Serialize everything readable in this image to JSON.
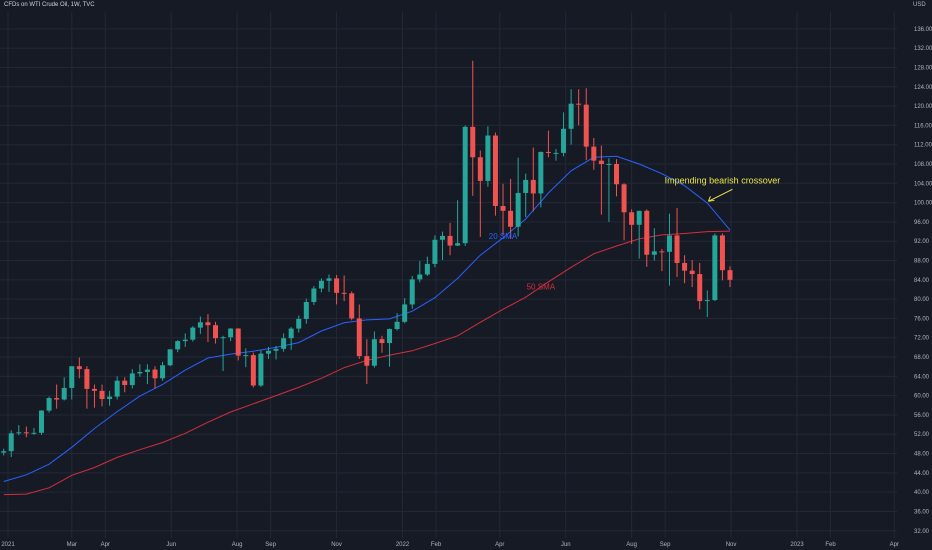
{
  "header": {
    "title": "CFDs on WTI Crude Oil, 1W, TVC",
    "currency": "USD"
  },
  "colors": {
    "background": "#161a25",
    "grid": "#232837",
    "bull": "#26a69a",
    "bear": "#ef5350",
    "sma20": "#2962ff",
    "sma50": "#d32f3c",
    "annotation": "#e8e84a",
    "axis_text": "#b2b5be"
  },
  "chart_data": {
    "type": "candlestick",
    "ylim": [
      30.5,
      139.5
    ],
    "y_ticks": [
      32,
      36,
      40,
      44,
      48,
      52,
      56,
      60,
      64,
      68,
      72,
      76,
      80,
      84,
      88,
      92,
      96,
      100,
      104,
      108,
      112,
      116,
      120,
      124,
      128,
      132,
      136
    ],
    "x_labels": [
      {
        "label": "2021",
        "date": "2021-01-01"
      },
      {
        "label": "Mar",
        "date": "2021-03-01"
      },
      {
        "label": "Apr",
        "date": "2021-04-01"
      },
      {
        "label": "Jun",
        "date": "2021-06-01"
      },
      {
        "label": "Aug",
        "date": "2021-08-01"
      },
      {
        "label": "Sep",
        "date": "2021-09-01"
      },
      {
        "label": "Nov",
        "date": "2021-11-01"
      },
      {
        "label": "2022",
        "date": "2022-01-01"
      },
      {
        "label": "Feb",
        "date": "2022-02-01"
      },
      {
        "label": "Apr",
        "date": "2022-04-01"
      },
      {
        "label": "Jun",
        "date": "2022-06-01"
      },
      {
        "label": "Aug",
        "date": "2022-08-01"
      },
      {
        "label": "Sep",
        "date": "2022-09-01"
      },
      {
        "label": "Nov",
        "date": "2022-11-01"
      },
      {
        "label": "2023",
        "date": "2023-01-01"
      },
      {
        "label": "Feb",
        "date": "2023-02-01"
      },
      {
        "label": "Apr",
        "date": "2023-04-01"
      }
    ],
    "candles": [
      {
        "date": "2020-12-28",
        "o": 48.2,
        "h": 49.0,
        "l": 47.6,
        "c": 48.5
      },
      {
        "date": "2021-01-04",
        "o": 48.5,
        "h": 52.8,
        "l": 47.3,
        "c": 52.2
      },
      {
        "date": "2021-01-11",
        "o": 52.2,
        "h": 53.9,
        "l": 51.8,
        "c": 52.4
      },
      {
        "date": "2021-01-18",
        "o": 52.4,
        "h": 53.6,
        "l": 51.4,
        "c": 52.3
      },
      {
        "date": "2021-01-25",
        "o": 52.3,
        "h": 53.3,
        "l": 51.9,
        "c": 52.3
      },
      {
        "date": "2021-02-01",
        "o": 52.3,
        "h": 57.0,
        "l": 51.9,
        "c": 56.9
      },
      {
        "date": "2021-02-08",
        "o": 56.9,
        "h": 59.8,
        "l": 56.5,
        "c": 59.5
      },
      {
        "date": "2021-02-15",
        "o": 59.5,
        "h": 62.3,
        "l": 57.3,
        "c": 59.2
      },
      {
        "date": "2021-02-22",
        "o": 59.2,
        "h": 63.8,
        "l": 59.0,
        "c": 61.6
      },
      {
        "date": "2021-03-01",
        "o": 61.6,
        "h": 66.1,
        "l": 59.2,
        "c": 66.1
      },
      {
        "date": "2021-03-08",
        "o": 66.1,
        "h": 67.9,
        "l": 63.6,
        "c": 65.5
      },
      {
        "date": "2021-03-15",
        "o": 65.5,
        "h": 66.1,
        "l": 57.3,
        "c": 61.4
      },
      {
        "date": "2021-03-22",
        "o": 61.4,
        "h": 62.3,
        "l": 57.5,
        "c": 61.0
      },
      {
        "date": "2021-03-29",
        "o": 61.0,
        "h": 62.3,
        "l": 57.8,
        "c": 59.3
      },
      {
        "date": "2021-04-05",
        "o": 59.3,
        "h": 61.0,
        "l": 57.9,
        "c": 59.8
      },
      {
        "date": "2021-04-12",
        "o": 59.8,
        "h": 64.0,
        "l": 59.2,
        "c": 63.1
      },
      {
        "date": "2021-04-19",
        "o": 63.1,
        "h": 63.8,
        "l": 60.7,
        "c": 62.2
      },
      {
        "date": "2021-04-26",
        "o": 62.2,
        "h": 65.5,
        "l": 61.5,
        "c": 64.6
      },
      {
        "date": "2021-05-03",
        "o": 64.6,
        "h": 66.5,
        "l": 63.9,
        "c": 64.9
      },
      {
        "date": "2021-05-10",
        "o": 64.9,
        "h": 66.5,
        "l": 62.4,
        "c": 65.4
      },
      {
        "date": "2021-05-17",
        "o": 65.4,
        "h": 66.1,
        "l": 61.5,
        "c": 63.6
      },
      {
        "date": "2021-05-24",
        "o": 63.6,
        "h": 67.0,
        "l": 63.1,
        "c": 66.3
      },
      {
        "date": "2021-05-31",
        "o": 66.3,
        "h": 69.6,
        "l": 66.1,
        "c": 69.6
      },
      {
        "date": "2021-06-07",
        "o": 69.6,
        "h": 71.5,
        "l": 69.0,
        "c": 71.3
      },
      {
        "date": "2021-06-14",
        "o": 71.3,
        "h": 72.9,
        "l": 70.1,
        "c": 71.6
      },
      {
        "date": "2021-06-21",
        "o": 71.6,
        "h": 74.4,
        "l": 71.2,
        "c": 74.1
      },
      {
        "date": "2021-06-28",
        "o": 74.1,
        "h": 76.4,
        "l": 72.8,
        "c": 75.2
      },
      {
        "date": "2021-07-05",
        "o": 75.2,
        "h": 76.9,
        "l": 71.1,
        "c": 74.6
      },
      {
        "date": "2021-07-12",
        "o": 74.6,
        "h": 75.3,
        "l": 70.8,
        "c": 71.9
      },
      {
        "date": "2021-07-19",
        "o": 71.9,
        "h": 72.4,
        "l": 65.1,
        "c": 72.1
      },
      {
        "date": "2021-07-26",
        "o": 72.1,
        "h": 74.0,
        "l": 71.3,
        "c": 73.9
      },
      {
        "date": "2021-08-02",
        "o": 73.9,
        "h": 74.0,
        "l": 67.3,
        "c": 68.3
      },
      {
        "date": "2021-08-09",
        "o": 68.3,
        "h": 69.8,
        "l": 65.9,
        "c": 68.4
      },
      {
        "date": "2021-08-16",
        "o": 68.4,
        "h": 68.9,
        "l": 61.7,
        "c": 62.1
      },
      {
        "date": "2021-08-23",
        "o": 62.1,
        "h": 69.4,
        "l": 61.8,
        "c": 68.7
      },
      {
        "date": "2021-08-30",
        "o": 68.7,
        "h": 70.1,
        "l": 67.6,
        "c": 69.3
      },
      {
        "date": "2021-09-06",
        "o": 69.3,
        "h": 70.3,
        "l": 67.5,
        "c": 69.7
      },
      {
        "date": "2021-09-13",
        "o": 69.7,
        "h": 72.9,
        "l": 69.1,
        "c": 71.9
      },
      {
        "date": "2021-09-20",
        "o": 71.9,
        "h": 74.2,
        "l": 69.5,
        "c": 73.9
      },
      {
        "date": "2021-09-27",
        "o": 73.9,
        "h": 76.6,
        "l": 73.1,
        "c": 75.9
      },
      {
        "date": "2021-10-04",
        "o": 75.9,
        "h": 80.1,
        "l": 74.9,
        "c": 79.4
      },
      {
        "date": "2021-10-11",
        "o": 79.4,
        "h": 82.7,
        "l": 78.8,
        "c": 82.2
      },
      {
        "date": "2021-10-18",
        "o": 82.2,
        "h": 84.3,
        "l": 81.4,
        "c": 83.8
      },
      {
        "date": "2021-10-25",
        "o": 83.8,
        "h": 85.1,
        "l": 81.5,
        "c": 84.3
      },
      {
        "date": "2021-11-01",
        "o": 84.3,
        "h": 85.0,
        "l": 78.9,
        "c": 81.3
      },
      {
        "date": "2021-11-08",
        "o": 81.3,
        "h": 84.9,
        "l": 79.6,
        "c": 81.2
      },
      {
        "date": "2021-11-15",
        "o": 81.2,
        "h": 81.6,
        "l": 75.6,
        "c": 76.0
      },
      {
        "date": "2021-11-22",
        "o": 76.0,
        "h": 78.9,
        "l": 67.6,
        "c": 68.2
      },
      {
        "date": "2021-11-29",
        "o": 68.2,
        "h": 71.7,
        "l": 62.4,
        "c": 66.2
      },
      {
        "date": "2021-12-06",
        "o": 66.2,
        "h": 73.3,
        "l": 65.8,
        "c": 71.7
      },
      {
        "date": "2021-12-13",
        "o": 71.7,
        "h": 72.4,
        "l": 68.9,
        "c": 70.9
      },
      {
        "date": "2021-12-20",
        "o": 70.9,
        "h": 73.9,
        "l": 66.0,
        "c": 73.8
      },
      {
        "date": "2021-12-27",
        "o": 73.8,
        "h": 77.1,
        "l": 73.5,
        "c": 75.3
      },
      {
        "date": "2022-01-03",
        "o": 75.3,
        "h": 80.2,
        "l": 75.0,
        "c": 78.9
      },
      {
        "date": "2022-01-10",
        "o": 78.9,
        "h": 84.8,
        "l": 78.0,
        "c": 84.1
      },
      {
        "date": "2022-01-17",
        "o": 84.1,
        "h": 87.9,
        "l": 83.5,
        "c": 85.1
      },
      {
        "date": "2022-01-24",
        "o": 85.1,
        "h": 88.8,
        "l": 84.8,
        "c": 87.3
      },
      {
        "date": "2022-01-31",
        "o": 87.3,
        "h": 93.2,
        "l": 86.6,
        "c": 92.3
      },
      {
        "date": "2022-02-07",
        "o": 92.3,
        "h": 94.0,
        "l": 88.1,
        "c": 93.1
      },
      {
        "date": "2022-02-14",
        "o": 93.1,
        "h": 95.8,
        "l": 89.1,
        "c": 91.1
      },
      {
        "date": "2022-02-21",
        "o": 91.1,
        "h": 100.5,
        "l": 91.0,
        "c": 91.6
      },
      {
        "date": "2022-02-28",
        "o": 91.6,
        "h": 116.0,
        "l": 91.0,
        "c": 115.7
      },
      {
        "date": "2022-03-07",
        "o": 115.7,
        "h": 129.4,
        "l": 101.4,
        "c": 109.4
      },
      {
        "date": "2022-03-14",
        "o": 109.4,
        "h": 110.8,
        "l": 92.9,
        "c": 104.5
      },
      {
        "date": "2022-03-21",
        "o": 104.5,
        "h": 115.8,
        "l": 103.3,
        "c": 113.9
      },
      {
        "date": "2022-03-28",
        "o": 113.9,
        "h": 114.5,
        "l": 97.3,
        "c": 99.3
      },
      {
        "date": "2022-04-04",
        "o": 99.3,
        "h": 103.9,
        "l": 93.3,
        "c": 98.3
      },
      {
        "date": "2022-04-11",
        "o": 98.3,
        "h": 104.9,
        "l": 92.5,
        "c": 95.0
      },
      {
        "date": "2022-04-18",
        "o": 95.0,
        "h": 109.3,
        "l": 93.0,
        "c": 102.0
      },
      {
        "date": "2022-04-25",
        "o": 102.0,
        "h": 106.0,
        "l": 97.0,
        "c": 104.7
      },
      {
        "date": "2022-05-02",
        "o": 104.7,
        "h": 111.4,
        "l": 98.2,
        "c": 101.9
      },
      {
        "date": "2022-05-09",
        "o": 101.9,
        "h": 110.6,
        "l": 99.0,
        "c": 110.5
      },
      {
        "date": "2022-05-16",
        "o": 110.5,
        "h": 114.9,
        "l": 109.4,
        "c": 110.3
      },
      {
        "date": "2022-05-23",
        "o": 110.3,
        "h": 111.1,
        "l": 108.7,
        "c": 110.3
      },
      {
        "date": "2022-05-30",
        "o": 110.3,
        "h": 118.7,
        "l": 109.6,
        "c": 115.3
      },
      {
        "date": "2022-06-06",
        "o": 115.3,
        "h": 123.5,
        "l": 112.0,
        "c": 120.5
      },
      {
        "date": "2022-06-13",
        "o": 120.5,
        "h": 123.5,
        "l": 116.0,
        "c": 120.3
      },
      {
        "date": "2022-06-20",
        "o": 120.3,
        "h": 123.7,
        "l": 108.8,
        "c": 111.6
      },
      {
        "date": "2022-06-27",
        "o": 111.6,
        "h": 113.4,
        "l": 106.8,
        "c": 108.7
      },
      {
        "date": "2022-07-04",
        "o": 108.7,
        "h": 111.8,
        "l": 97.5,
        "c": 108.0
      },
      {
        "date": "2022-07-11",
        "o": 108.0,
        "h": 109.2,
        "l": 96.0,
        "c": 108.0
      },
      {
        "date": "2022-07-18",
        "o": 108.0,
        "h": 109.0,
        "l": 101.3,
        "c": 103.8
      },
      {
        "date": "2022-07-25",
        "o": 103.8,
        "h": 104.0,
        "l": 92.2,
        "c": 98.0
      },
      {
        "date": "2022-08-01",
        "o": 98.0,
        "h": 98.6,
        "l": 91.4,
        "c": 95.4
      },
      {
        "date": "2022-08-08",
        "o": 95.4,
        "h": 98.3,
        "l": 88.4,
        "c": 98.3
      },
      {
        "date": "2022-08-15",
        "o": 98.3,
        "h": 98.6,
        "l": 86.7,
        "c": 89.2
      },
      {
        "date": "2022-08-22",
        "o": 89.2,
        "h": 94.7,
        "l": 88.0,
        "c": 89.9
      },
      {
        "date": "2022-08-29",
        "o": 89.9,
        "h": 90.4,
        "l": 85.8,
        "c": 89.8
      },
      {
        "date": "2022-09-05",
        "o": 89.8,
        "h": 97.7,
        "l": 82.8,
        "c": 93.2
      },
      {
        "date": "2022-09-12",
        "o": 93.2,
        "h": 98.9,
        "l": 84.6,
        "c": 87.5
      },
      {
        "date": "2022-09-19",
        "o": 87.5,
        "h": 89.1,
        "l": 83.3,
        "c": 85.9
      },
      {
        "date": "2022-09-26",
        "o": 85.9,
        "h": 88.1,
        "l": 82.5,
        "c": 85.2
      },
      {
        "date": "2022-10-03",
        "o": 85.2,
        "h": 87.5,
        "l": 77.9,
        "c": 79.6
      },
      {
        "date": "2022-10-10",
        "o": 79.6,
        "h": 81.8,
        "l": 76.3,
        "c": 79.8
      },
      {
        "date": "2022-10-17",
        "o": 79.8,
        "h": 93.6,
        "l": 79.6,
        "c": 93.2
      },
      {
        "date": "2022-10-24",
        "o": 93.2,
        "h": 93.6,
        "l": 83.9,
        "c": 86.0
      },
      {
        "date": "2022-10-31",
        "o": 86.0,
        "h": 86.8,
        "l": 82.5,
        "c": 84.0
      }
    ],
    "series": [
      {
        "name": "20 SMA",
        "type": "line",
        "color": "#2962ff",
        "points": [
          [
            "2020-12-28",
            42.2
          ],
          [
            "2021-01-18",
            43.6
          ],
          [
            "2021-02-08",
            45.8
          ],
          [
            "2021-03-01",
            49.3
          ],
          [
            "2021-03-22",
            53.2
          ],
          [
            "2021-04-12",
            56.7
          ],
          [
            "2021-05-03",
            59.9
          ],
          [
            "2021-05-24",
            62.3
          ],
          [
            "2021-06-14",
            65.3
          ],
          [
            "2021-07-05",
            67.8
          ],
          [
            "2021-07-26",
            68.6
          ],
          [
            "2021-08-16",
            69.2
          ],
          [
            "2021-09-06",
            70.0
          ],
          [
            "2021-09-27",
            71.0
          ],
          [
            "2021-10-18",
            73.4
          ],
          [
            "2021-11-08",
            75.1
          ],
          [
            "2021-11-29",
            75.7
          ],
          [
            "2021-12-20",
            75.9
          ],
          [
            "2022-01-10",
            77.5
          ],
          [
            "2022-01-31",
            80.3
          ],
          [
            "2022-02-21",
            84.3
          ],
          [
            "2022-03-14",
            89.1
          ],
          [
            "2022-04-04",
            92.7
          ],
          [
            "2022-04-25",
            96.6
          ],
          [
            "2022-05-16",
            102.0
          ],
          [
            "2022-06-06",
            106.6
          ],
          [
            "2022-06-27",
            109.4
          ],
          [
            "2022-07-18",
            109.6
          ],
          [
            "2022-08-08",
            108.0
          ],
          [
            "2022-08-29",
            106.0
          ],
          [
            "2022-09-19",
            103.5
          ],
          [
            "2022-10-10",
            99.9
          ],
          [
            "2022-10-31",
            94.3
          ]
        ]
      },
      {
        "name": "50 SMA",
        "type": "line",
        "color": "#d32f3c",
        "points": [
          [
            "2020-12-28",
            39.5
          ],
          [
            "2021-01-18",
            39.6
          ],
          [
            "2021-02-08",
            40.9
          ],
          [
            "2021-03-01",
            43.5
          ],
          [
            "2021-03-22",
            45.1
          ],
          [
            "2021-04-12",
            47.2
          ],
          [
            "2021-05-03",
            48.8
          ],
          [
            "2021-05-24",
            50.3
          ],
          [
            "2021-06-14",
            52.2
          ],
          [
            "2021-07-05",
            54.5
          ],
          [
            "2021-07-26",
            56.6
          ],
          [
            "2021-08-16",
            58.3
          ],
          [
            "2021-09-06",
            60.0
          ],
          [
            "2021-09-27",
            61.7
          ],
          [
            "2021-10-18",
            63.6
          ],
          [
            "2021-11-08",
            65.8
          ],
          [
            "2021-11-29",
            67.3
          ],
          [
            "2021-12-20",
            68.4
          ],
          [
            "2022-01-10",
            69.3
          ],
          [
            "2022-01-31",
            70.8
          ],
          [
            "2022-02-21",
            72.4
          ],
          [
            "2022-03-14",
            75.2
          ],
          [
            "2022-04-04",
            77.9
          ],
          [
            "2022-04-25",
            80.4
          ],
          [
            "2022-05-16",
            83.6
          ],
          [
            "2022-06-06",
            86.6
          ],
          [
            "2022-06-27",
            89.4
          ],
          [
            "2022-07-18",
            91.0
          ],
          [
            "2022-08-08",
            92.5
          ],
          [
            "2022-08-29",
            93.3
          ],
          [
            "2022-09-19",
            93.6
          ],
          [
            "2022-10-10",
            94.0
          ],
          [
            "2022-10-31",
            94.1
          ]
        ]
      }
    ],
    "annotations": [
      {
        "text": "Impending bearish crossover",
        "date": "2022-10-24",
        "value": 104.0,
        "color": "#e8e84a"
      },
      {
        "text": "20 SMA",
        "date": "2022-04-04",
        "value": 92.5,
        "color": "#2962ff"
      },
      {
        "text": "50 SMA",
        "date": "2022-05-09",
        "value": 82.0,
        "color": "#d32f3c"
      }
    ]
  }
}
